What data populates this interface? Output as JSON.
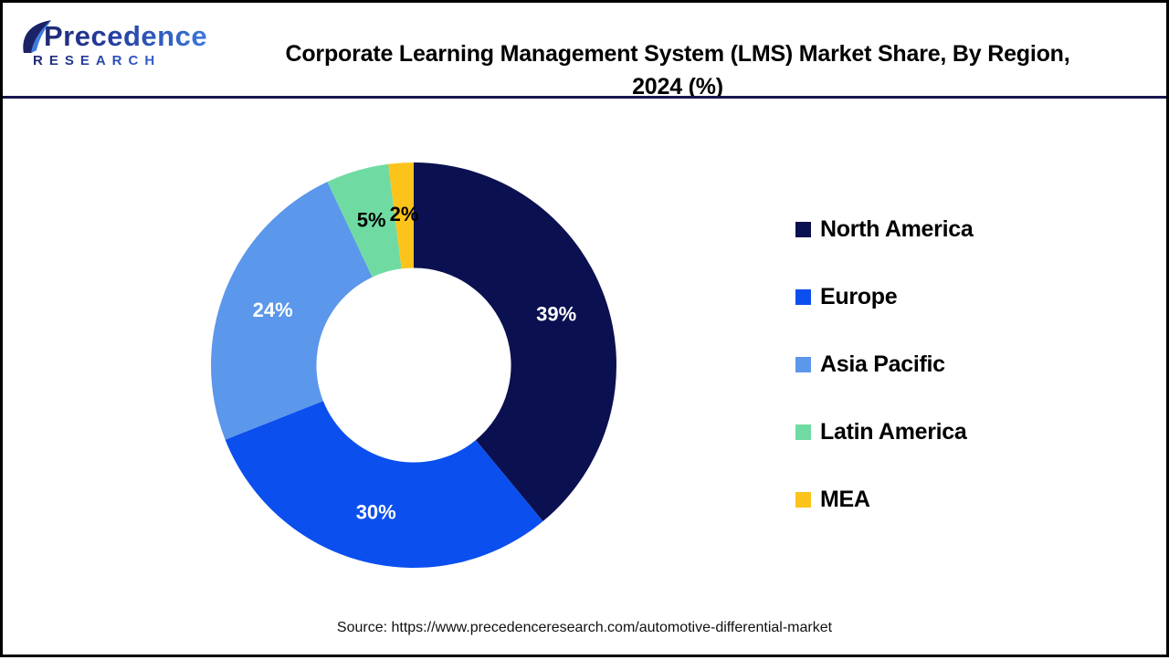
{
  "brand": {
    "name_line1": "Precedence",
    "name_line2": "RESEARCH",
    "color_dark": "#1B2366",
    "color_blue": "#3D7BE0"
  },
  "header": {
    "title_line1": "Corporate Learning Management System (LMS) Market Share, By Region,",
    "title_line2": "2024 (%)"
  },
  "footer": {
    "source_text": "Source: https://www.precedenceresearch.com/automotive-differential-market"
  },
  "chart_data": {
    "type": "pie",
    "subtype": "donut",
    "title": "Corporate Learning Management System (LMS) Market Share, By Region, 2024 (%)",
    "unit": "%",
    "labels": [
      "North America",
      "Europe",
      "Asia Pacific",
      "Latin America",
      "MEA"
    ],
    "values": [
      39,
      30,
      24,
      5,
      2
    ],
    "colors": [
      "#0B1050",
      "#0B4FEE",
      "#5B97EA",
      "#6FDBA3",
      "#FCC31B"
    ],
    "slice_label_colors": [
      "#FFFFFF",
      "#FFFFFF",
      "#FFFFFF",
      "#000000",
      "#000000"
    ],
    "legend_position": "right",
    "start_angle_deg": 0,
    "direction": "clockwise",
    "inner_radius_ratio": 0.48
  }
}
